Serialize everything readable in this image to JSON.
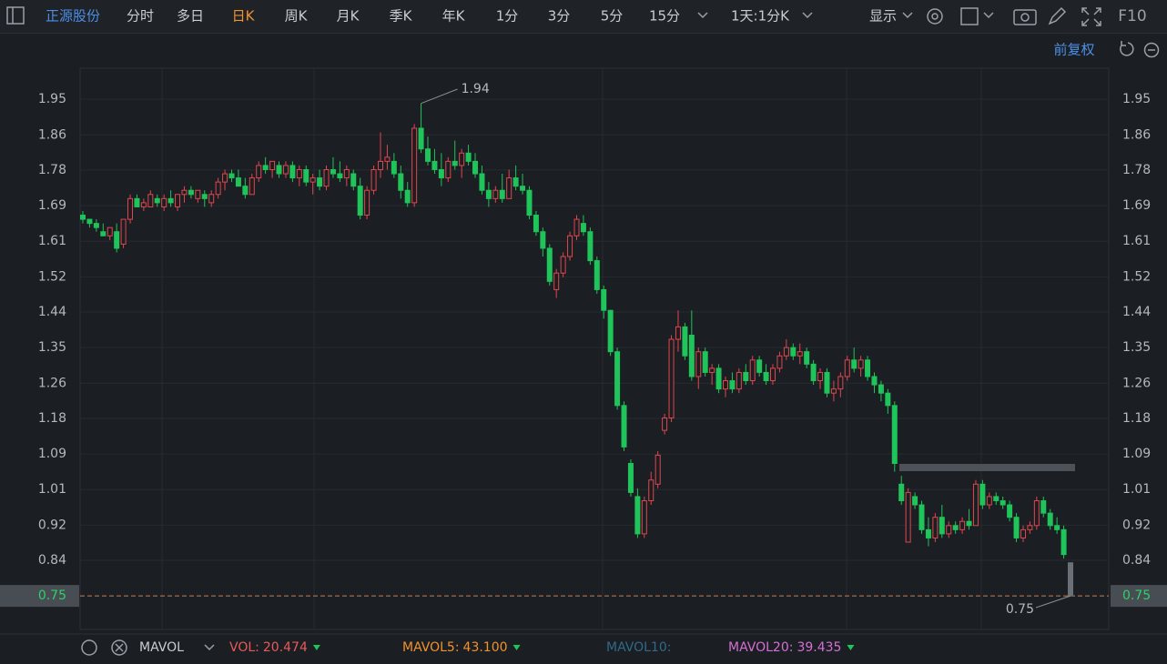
{
  "toolbar": {
    "stock": "正源股份",
    "tabs": [
      "分时",
      "多日",
      "日K",
      "周K",
      "月K",
      "季K",
      "年K",
      "1分",
      "3分",
      "5分",
      "15分"
    ],
    "active_tab": 2,
    "period": "1天:1分K",
    "display": "显示",
    "f10": "F10"
  },
  "adjust": "前复权",
  "chart_data": {
    "type": "candlestick",
    "ylim": [
      0.669,
      2.025
    ],
    "yticks": [
      1.95,
      {
        "value": 1.864,
        "label": "1.86"
      },
      {
        "value": 1.779,
        "label": "1.78"
      },
      {
        "value": 1.693,
        "label": "1.69"
      },
      {
        "value": 1.607,
        "label": "1.61"
      },
      {
        "value": 1.521,
        "label": "1.52"
      },
      {
        "value": 1.436,
        "label": "1.44"
      },
      {
        "value": 1.35,
        "label": "1.35"
      },
      {
        "value": 1.264,
        "label": "1.26"
      },
      {
        "value": 1.179,
        "label": "1.18"
      },
      {
        "value": 1.093,
        "label": "1.09"
      },
      {
        "value": 1.007,
        "label": "1.01"
      },
      {
        "value": 0.921,
        "label": "0.92"
      },
      {
        "value": 0.836,
        "label": "0.84"
      }
    ],
    "grid": true,
    "up_color": "#e0474f",
    "down_color": "#1fc45a",
    "current_color": "#6b6f76",
    "last_price": 0.75,
    "high_label": 1.94,
    "low_label": 0.75,
    "candles": [
      [
        1.67,
        1.68,
        1.65,
        1.66
      ],
      [
        1.66,
        1.66,
        1.64,
        1.65
      ],
      [
        1.65,
        1.66,
        1.63,
        1.64
      ],
      [
        1.63,
        1.65,
        1.62,
        1.62
      ],
      [
        1.62,
        1.64,
        1.61,
        1.64
      ],
      [
        1.63,
        1.65,
        1.58,
        1.59
      ],
      [
        1.6,
        1.66,
        1.59,
        1.66
      ],
      [
        1.66,
        1.72,
        1.65,
        1.71
      ],
      [
        1.71,
        1.72,
        1.69,
        1.69
      ],
      [
        1.69,
        1.71,
        1.68,
        1.7
      ],
      [
        1.69,
        1.73,
        1.69,
        1.72
      ],
      [
        1.71,
        1.72,
        1.69,
        1.7
      ],
      [
        1.69,
        1.72,
        1.68,
        1.71
      ],
      [
        1.71,
        1.73,
        1.69,
        1.7
      ],
      [
        1.69,
        1.72,
        1.68,
        1.72
      ],
      [
        1.72,
        1.74,
        1.7,
        1.73
      ],
      [
        1.73,
        1.74,
        1.71,
        1.72
      ],
      [
        1.71,
        1.73,
        1.7,
        1.73
      ],
      [
        1.72,
        1.73,
        1.69,
        1.71
      ],
      [
        1.7,
        1.73,
        1.69,
        1.72
      ],
      [
        1.72,
        1.76,
        1.71,
        1.75
      ],
      [
        1.75,
        1.78,
        1.73,
        1.77
      ],
      [
        1.77,
        1.78,
        1.75,
        1.76
      ],
      [
        1.76,
        1.78,
        1.74,
        1.74
      ],
      [
        1.74,
        1.76,
        1.71,
        1.72
      ],
      [
        1.72,
        1.77,
        1.72,
        1.76
      ],
      [
        1.76,
        1.8,
        1.75,
        1.79
      ],
      [
        1.79,
        1.81,
        1.77,
        1.78
      ],
      [
        1.78,
        1.8,
        1.76,
        1.8
      ],
      [
        1.79,
        1.8,
        1.76,
        1.77
      ],
      [
        1.77,
        1.8,
        1.76,
        1.79
      ],
      [
        1.79,
        1.8,
        1.75,
        1.76
      ],
      [
        1.76,
        1.79,
        1.74,
        1.78
      ],
      [
        1.78,
        1.79,
        1.74,
        1.75
      ],
      [
        1.75,
        1.77,
        1.72,
        1.76
      ],
      [
        1.76,
        1.78,
        1.73,
        1.74
      ],
      [
        1.74,
        1.79,
        1.73,
        1.78
      ],
      [
        1.78,
        1.81,
        1.76,
        1.77
      ],
      [
        1.77,
        1.8,
        1.75,
        1.76
      ],
      [
        1.76,
        1.79,
        1.74,
        1.78
      ],
      [
        1.77,
        1.78,
        1.73,
        1.74
      ],
      [
        1.74,
        1.76,
        1.66,
        1.67
      ],
      [
        1.67,
        1.74,
        1.66,
        1.73
      ],
      [
        1.73,
        1.79,
        1.72,
        1.78
      ],
      [
        1.78,
        1.87,
        1.76,
        1.8
      ],
      [
        1.8,
        1.84,
        1.78,
        1.81
      ],
      [
        1.8,
        1.82,
        1.76,
        1.77
      ],
      [
        1.77,
        1.79,
        1.71,
        1.73
      ],
      [
        1.73,
        1.75,
        1.69,
        1.7
      ],
      [
        1.7,
        1.89,
        1.69,
        1.88
      ],
      [
        1.88,
        1.94,
        1.82,
        1.83
      ],
      [
        1.83,
        1.86,
        1.79,
        1.8
      ],
      [
        1.8,
        1.83,
        1.77,
        1.78
      ],
      [
        1.78,
        1.82,
        1.74,
        1.76
      ],
      [
        1.76,
        1.81,
        1.75,
        1.8
      ],
      [
        1.8,
        1.85,
        1.78,
        1.79
      ],
      [
        1.79,
        1.83,
        1.76,
        1.82
      ],
      [
        1.82,
        1.84,
        1.79,
        1.8
      ],
      [
        1.8,
        1.82,
        1.76,
        1.77
      ],
      [
        1.77,
        1.79,
        1.72,
        1.73
      ],
      [
        1.73,
        1.75,
        1.69,
        1.71
      ],
      [
        1.71,
        1.74,
        1.7,
        1.73
      ],
      [
        1.73,
        1.77,
        1.7,
        1.71
      ],
      [
        1.71,
        1.78,
        1.71,
        1.76
      ],
      [
        1.76,
        1.79,
        1.73,
        1.74
      ],
      [
        1.74,
        1.77,
        1.72,
        1.73
      ],
      [
        1.73,
        1.74,
        1.66,
        1.67
      ],
      [
        1.67,
        1.68,
        1.62,
        1.63
      ],
      [
        1.63,
        1.64,
        1.57,
        1.59
      ],
      [
        1.59,
        1.6,
        1.5,
        1.51
      ],
      [
        1.49,
        1.54,
        1.47,
        1.53
      ],
      [
        1.53,
        1.58,
        1.52,
        1.57
      ],
      [
        1.57,
        1.63,
        1.56,
        1.62
      ],
      [
        1.62,
        1.67,
        1.61,
        1.66
      ],
      [
        1.65,
        1.67,
        1.62,
        1.63
      ],
      [
        1.63,
        1.64,
        1.55,
        1.56
      ],
      [
        1.56,
        1.57,
        1.48,
        1.49
      ],
      [
        1.49,
        1.5,
        1.42,
        1.44
      ],
      [
        1.44,
        1.44,
        1.33,
        1.34
      ],
      [
        1.34,
        1.35,
        1.2,
        1.21
      ],
      [
        1.21,
        1.22,
        1.1,
        1.11
      ],
      [
        1.07,
        1.08,
        0.99,
        1.0
      ],
      [
        0.99,
        1.01,
        0.89,
        0.9
      ],
      [
        0.9,
        0.99,
        0.89,
        0.98
      ],
      [
        0.98,
        1.05,
        0.97,
        1.03
      ],
      [
        1.02,
        1.1,
        1.01,
        1.09
      ],
      [
        1.15,
        1.19,
        1.14,
        1.18
      ],
      [
        1.18,
        1.38,
        1.17,
        1.37
      ],
      [
        1.37,
        1.44,
        1.34,
        1.4
      ],
      [
        1.4,
        1.41,
        1.32,
        1.33
      ],
      [
        1.38,
        1.44,
        1.27,
        1.28
      ],
      [
        1.28,
        1.35,
        1.25,
        1.34
      ],
      [
        1.34,
        1.35,
        1.28,
        1.29
      ],
      [
        1.29,
        1.31,
        1.26,
        1.3
      ],
      [
        1.3,
        1.31,
        1.24,
        1.25
      ],
      [
        1.25,
        1.28,
        1.23,
        1.27
      ],
      [
        1.27,
        1.29,
        1.24,
        1.25
      ],
      [
        1.25,
        1.3,
        1.24,
        1.29
      ],
      [
        1.29,
        1.31,
        1.26,
        1.27
      ],
      [
        1.27,
        1.33,
        1.26,
        1.32
      ],
      [
        1.32,
        1.33,
        1.28,
        1.29
      ],
      [
        1.29,
        1.31,
        1.26,
        1.27
      ],
      [
        1.27,
        1.31,
        1.26,
        1.3
      ],
      [
        1.3,
        1.34,
        1.29,
        1.33
      ],
      [
        1.33,
        1.37,
        1.32,
        1.35
      ],
      [
        1.35,
        1.36,
        1.32,
        1.33
      ],
      [
        1.33,
        1.36,
        1.31,
        1.34
      ],
      [
        1.34,
        1.35,
        1.3,
        1.31
      ],
      [
        1.31,
        1.32,
        1.26,
        1.27
      ],
      [
        1.27,
        1.3,
        1.25,
        1.29
      ],
      [
        1.29,
        1.3,
        1.23,
        1.24
      ],
      [
        1.24,
        1.27,
        1.22,
        1.25
      ],
      [
        1.25,
        1.29,
        1.23,
        1.28
      ],
      [
        1.28,
        1.33,
        1.27,
        1.32
      ],
      [
        1.32,
        1.35,
        1.29,
        1.3
      ],
      [
        1.3,
        1.33,
        1.28,
        1.32
      ],
      [
        1.32,
        1.33,
        1.27,
        1.28
      ],
      [
        1.28,
        1.29,
        1.24,
        1.26
      ],
      [
        1.26,
        1.27,
        1.22,
        1.24
      ],
      [
        1.24,
        1.25,
        1.19,
        1.21
      ],
      [
        1.21,
        1.22,
        1.05,
        1.07
      ],
      [
        1.02,
        1.04,
        0.97,
        0.98
      ],
      [
        0.88,
        1.01,
        0.88,
        1.0
      ],
      [
        0.99,
        1.0,
        0.96,
        0.97
      ],
      [
        0.97,
        0.98,
        0.9,
        0.91
      ],
      [
        0.91,
        0.94,
        0.87,
        0.89
      ],
      [
        0.89,
        0.95,
        0.88,
        0.94
      ],
      [
        0.94,
        0.97,
        0.89,
        0.9
      ],
      [
        0.9,
        0.93,
        0.89,
        0.92
      ],
      [
        0.92,
        0.93,
        0.9,
        0.91
      ],
      [
        0.91,
        0.94,
        0.9,
        0.93
      ],
      [
        0.93,
        0.96,
        0.91,
        0.92
      ],
      [
        0.92,
        1.03,
        0.92,
        1.02
      ],
      [
        1.02,
        1.03,
        0.96,
        0.97
      ],
      [
        0.97,
        1.0,
        0.96,
        0.99
      ],
      [
        0.99,
        1.0,
        0.97,
        0.98
      ],
      [
        0.98,
        0.99,
        0.96,
        0.97
      ],
      [
        0.97,
        0.98,
        0.93,
        0.94
      ],
      [
        0.94,
        0.95,
        0.88,
        0.89
      ],
      [
        0.89,
        0.92,
        0.88,
        0.91
      ],
      [
        0.91,
        0.93,
        0.9,
        0.92
      ],
      [
        0.92,
        0.99,
        0.91,
        0.98
      ],
      [
        0.98,
        0.99,
        0.94,
        0.95
      ],
      [
        0.95,
        0.96,
        0.91,
        0.92
      ],
      [
        0.92,
        0.94,
        0.9,
        0.91
      ],
      [
        0.91,
        0.92,
        0.84,
        0.85
      ],
      [
        0.83,
        0.83,
        0.75,
        0.75
      ]
    ]
  },
  "indicator": {
    "name": "MAVOL",
    "items": [
      {
        "name": "VOL:",
        "value": "20.474",
        "color": "#e85a5a"
      },
      {
        "name": "MAVOL5:",
        "value": "43.100",
        "color": "#f0922e"
      },
      {
        "name": "MAVOL10:",
        "color": "#2f6a8c"
      },
      {
        "name": "MAVOL20:",
        "value": "39.435",
        "color": "#d46fd4"
      }
    ]
  }
}
